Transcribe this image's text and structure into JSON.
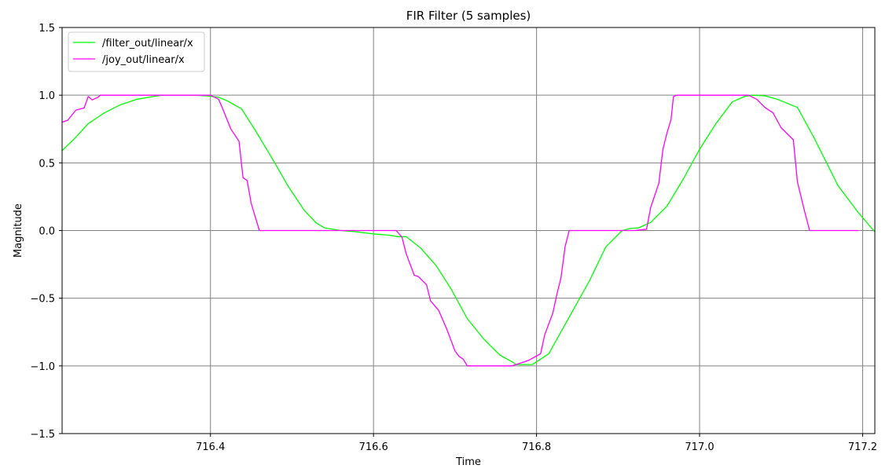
{
  "chart_data": {
    "type": "line",
    "title": "FIR Filter (5 samples)",
    "xlabel": "Time",
    "ylabel": "Magnitude",
    "xlim": [
      716.218,
      717.215
    ],
    "ylim": [
      -1.5,
      1.5
    ],
    "xticks": [
      716.4,
      716.6,
      716.8,
      717.0,
      717.2
    ],
    "xtick_labels": [
      "716.4",
      "716.6",
      "716.8",
      "717.0",
      "717.2"
    ],
    "yticks": [
      -1.5,
      -1.0,
      -0.5,
      0.0,
      0.5,
      1.0,
      1.5
    ],
    "ytick_labels": [
      "−1.5",
      "−1.0",
      "−0.5",
      "0.0",
      "0.5",
      "1.0",
      "1.5"
    ],
    "grid": true,
    "grid_color": "#808080",
    "legend_position": "top-left",
    "series": [
      {
        "name": "/filter_out/linear/x",
        "color": "#00ff00",
        "points": [
          [
            716.218,
            0.59
          ],
          [
            716.235,
            0.69
          ],
          [
            716.25,
            0.79
          ],
          [
            716.27,
            0.87
          ],
          [
            716.29,
            0.93
          ],
          [
            716.31,
            0.97
          ],
          [
            716.33,
            0.99
          ],
          [
            716.34,
            1.0
          ],
          [
            716.36,
            1.0
          ],
          [
            716.38,
            1.0
          ],
          [
            716.395,
            0.995
          ],
          [
            716.41,
            0.985
          ],
          [
            716.42,
            0.96
          ],
          [
            716.438,
            0.9
          ],
          [
            716.455,
            0.74
          ],
          [
            716.475,
            0.54
          ],
          [
            716.495,
            0.33
          ],
          [
            716.515,
            0.15
          ],
          [
            716.53,
            0.055
          ],
          [
            716.54,
            0.02
          ],
          [
            716.56,
            0.0
          ],
          [
            716.58,
            -0.01
          ],
          [
            716.6,
            -0.025
          ],
          [
            716.62,
            -0.035
          ],
          [
            716.63,
            -0.045
          ],
          [
            716.64,
            -0.045
          ],
          [
            716.658,
            -0.13
          ],
          [
            716.677,
            -0.26
          ],
          [
            716.695,
            -0.43
          ],
          [
            716.715,
            -0.65
          ],
          [
            716.735,
            -0.8
          ],
          [
            716.755,
            -0.92
          ],
          [
            716.77,
            -0.97
          ],
          [
            716.775,
            -0.99
          ],
          [
            716.795,
            -0.99
          ],
          [
            716.815,
            -0.91
          ],
          [
            716.84,
            -0.64
          ],
          [
            716.865,
            -0.37
          ],
          [
            716.885,
            -0.12
          ],
          [
            716.905,
            0.0
          ],
          [
            716.915,
            0.015
          ],
          [
            716.925,
            0.02
          ],
          [
            716.94,
            0.06
          ],
          [
            716.96,
            0.18
          ],
          [
            716.98,
            0.38
          ],
          [
            717.0,
            0.6
          ],
          [
            717.02,
            0.79
          ],
          [
            717.04,
            0.95
          ],
          [
            717.055,
            0.99
          ],
          [
            717.065,
            1.0
          ],
          [
            717.08,
            0.995
          ],
          [
            717.095,
            0.97
          ],
          [
            717.12,
            0.91
          ],
          [
            717.14,
            0.69
          ],
          [
            717.17,
            0.33
          ],
          [
            717.195,
            0.13
          ],
          [
            717.215,
            -0.01
          ]
        ]
      },
      {
        "name": "/joy_out/linear/x",
        "color": "#ff00ff",
        "points": [
          [
            716.218,
            0.8
          ],
          [
            716.225,
            0.815
          ],
          [
            716.235,
            0.89
          ],
          [
            716.245,
            0.905
          ],
          [
            716.25,
            0.99
          ],
          [
            716.255,
            0.965
          ],
          [
            716.262,
            0.985
          ],
          [
            716.265,
            1.0
          ],
          [
            716.3,
            1.0
          ],
          [
            716.34,
            1.0
          ],
          [
            716.39,
            1.0
          ],
          [
            716.4,
            1.0
          ],
          [
            716.41,
            0.97
          ],
          [
            716.415,
            0.9
          ],
          [
            716.425,
            0.75
          ],
          [
            716.435,
            0.66
          ],
          [
            716.44,
            0.39
          ],
          [
            716.445,
            0.37
          ],
          [
            716.45,
            0.2
          ],
          [
            716.455,
            0.1
          ],
          [
            716.46,
            0.0
          ],
          [
            716.5,
            0.0
          ],
          [
            716.55,
            0.0
          ],
          [
            716.6,
            0.0
          ],
          [
            716.628,
            0.0
          ],
          [
            716.635,
            -0.05
          ],
          [
            716.64,
            -0.17
          ],
          [
            716.65,
            -0.33
          ],
          [
            716.655,
            -0.34
          ],
          [
            716.665,
            -0.4
          ],
          [
            716.67,
            -0.52
          ],
          [
            716.68,
            -0.59
          ],
          [
            716.69,
            -0.73
          ],
          [
            716.7,
            -0.89
          ],
          [
            716.705,
            -0.93
          ],
          [
            716.71,
            -0.95
          ],
          [
            716.715,
            -1.0
          ],
          [
            716.74,
            -1.0
          ],
          [
            716.77,
            -1.0
          ],
          [
            716.78,
            -0.98
          ],
          [
            716.79,
            -0.96
          ],
          [
            716.805,
            -0.91
          ],
          [
            716.81,
            -0.77
          ],
          [
            716.82,
            -0.61
          ],
          [
            716.825,
            -0.47
          ],
          [
            716.83,
            -0.35
          ],
          [
            716.835,
            -0.12
          ],
          [
            716.84,
            0.0
          ],
          [
            716.88,
            0.0
          ],
          [
            716.92,
            0.0
          ],
          [
            716.935,
            0.01
          ],
          [
            716.94,
            0.17
          ],
          [
            716.95,
            0.35
          ],
          [
            716.955,
            0.6
          ],
          [
            716.96,
            0.72
          ],
          [
            716.965,
            0.82
          ],
          [
            716.968,
            0.99
          ],
          [
            716.972,
            1.0
          ],
          [
            717.0,
            1.0
          ],
          [
            717.03,
            1.0
          ],
          [
            717.06,
            1.0
          ],
          [
            717.07,
            0.97
          ],
          [
            717.08,
            0.91
          ],
          [
            717.09,
            0.87
          ],
          [
            717.1,
            0.76
          ],
          [
            717.115,
            0.67
          ],
          [
            717.12,
            0.36
          ],
          [
            717.128,
            0.16
          ],
          [
            717.135,
            0.0
          ],
          [
            717.16,
            0.0
          ],
          [
            717.195,
            0.0
          ]
        ]
      }
    ]
  }
}
